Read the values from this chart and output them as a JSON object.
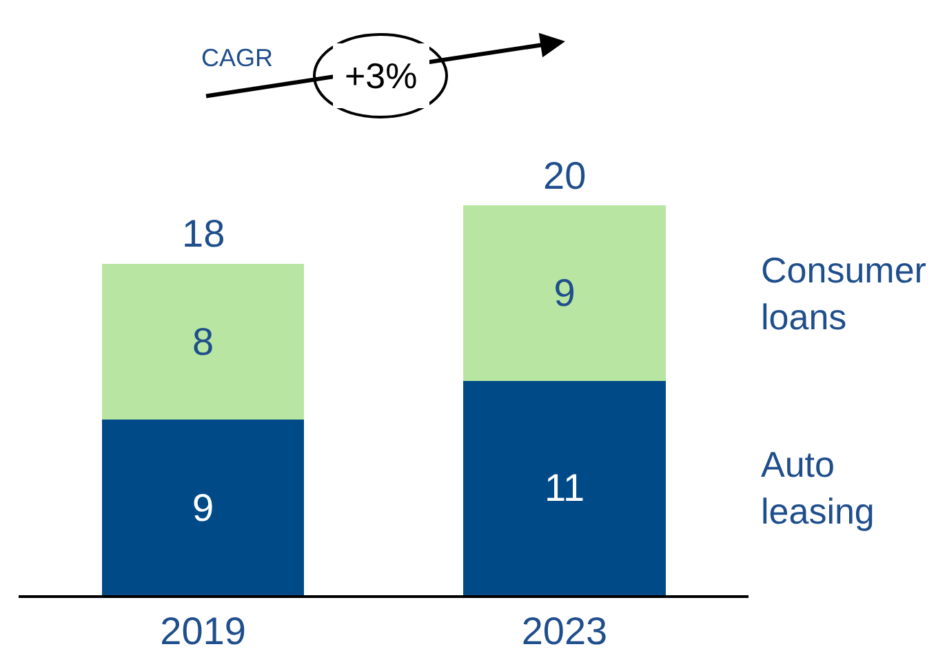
{
  "chart_data": {
    "type": "bar",
    "stacked": true,
    "categories": [
      "2019",
      "2023"
    ],
    "series": [
      {
        "name": "Auto leasing",
        "color": "#004b87",
        "values": [
          9,
          11
        ]
      },
      {
        "name": "Consumer loans",
        "color": "#b8e6a2",
        "values": [
          8,
          9
        ]
      }
    ],
    "data_labels": true,
    "totals": [
      "18",
      "20"
    ],
    "annotations": [
      "CAGR",
      "+3%"
    ],
    "legend": false
  }
}
